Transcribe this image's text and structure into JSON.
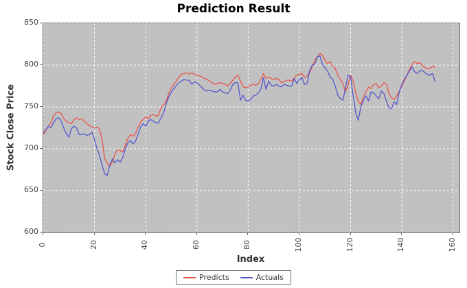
{
  "chart_data": {
    "type": "line",
    "title": "Prediction Result",
    "xlabel": "Index",
    "ylabel": "Stock Close Price",
    "xlim": [
      0,
      162.5
    ],
    "ylim": [
      600,
      850
    ],
    "x_ticks": [
      0,
      20,
      40,
      60,
      80,
      100,
      120,
      140,
      160
    ],
    "y_ticks": [
      600,
      650,
      700,
      750,
      800,
      850
    ],
    "x_start": 0,
    "x_step": 1,
    "grid": true,
    "grid_color": "#ffffff",
    "plot_bg": "#c1c1c1",
    "legend_position": "bottom-center",
    "series": [
      {
        "name": "Predicts",
        "color": "#e8544c",
        "values": [
          717,
          722,
          727,
          731,
          739,
          743,
          744,
          742,
          736,
          733,
          731,
          730,
          735,
          737,
          735,
          736,
          733,
          730,
          728,
          726,
          725,
          726,
          724,
          710,
          688,
          683,
          679,
          684,
          694,
          699,
          698,
          696,
          704,
          712,
          717,
          715,
          718,
          726,
          732,
          735,
          738,
          736,
          740,
          741,
          739,
          740,
          749,
          752,
          757,
          766,
          773,
          777,
          781,
          786,
          789,
          790,
          791,
          789,
          791,
          789,
          788,
          787,
          786,
          784,
          783,
          781,
          779,
          777,
          778,
          779,
          778,
          777,
          775,
          778,
          782,
          786,
          788,
          781,
          774,
          773,
          774,
          776,
          777,
          776,
          778,
          783,
          790,
          784,
          786,
          784,
          783,
          784,
          783,
          779,
          780,
          782,
          782,
          781,
          785,
          788,
          789,
          790,
          785,
          787,
          791,
          798,
          806,
          810,
          814,
          812,
          806,
          802,
          804,
          799,
          796,
          788,
          783,
          778,
          768,
          776,
          788,
          781,
          766,
          757,
          753,
          762,
          768,
          774,
          772,
          777,
          778,
          773,
          775,
          779,
          777,
          766,
          761,
          759,
          763,
          769,
          775,
          781,
          788,
          795,
          801,
          804,
          802,
          803,
          800,
          797,
          796,
          796,
          799,
          797
        ]
      },
      {
        "name": "Actuals",
        "color": "#5457cd",
        "values": [
          719,
          723,
          727,
          725,
          731,
          736,
          737,
          733,
          725,
          718,
          714,
          724,
          727,
          725,
          717,
          717,
          718,
          716,
          717,
          720,
          711,
          700,
          692,
          680,
          670,
          668,
          681,
          688,
          683,
          687,
          684,
          689,
          700,
          707,
          710,
          706,
          709,
          717,
          726,
          730,
          727,
          733,
          735,
          733,
          731,
          731,
          737,
          743,
          754,
          762,
          768,
          772,
          776,
          779,
          781,
          783,
          782,
          782,
          777,
          780,
          779,
          776,
          773,
          770,
          769,
          770,
          769,
          768,
          768,
          771,
          768,
          767,
          766,
          770,
          777,
          779,
          779,
          758,
          764,
          758,
          757,
          759,
          763,
          764,
          767,
          772,
          785,
          771,
          781,
          776,
          775,
          777,
          775,
          774,
          777,
          776,
          775,
          775,
          784,
          778,
          783,
          785,
          777,
          778,
          793,
          800,
          801,
          810,
          811,
          801,
          797,
          793,
          786,
          783,
          775,
          764,
          760,
          758,
          772,
          788,
          786,
          763,
          743,
          734,
          750,
          758,
          763,
          757,
          768,
          767,
          763,
          760,
          769,
          766,
          757,
          749,
          748,
          756,
          753,
          768,
          777,
          783,
          788,
          793,
          798,
          792,
          790,
          793,
          794,
          791,
          789,
          788,
          790,
          780
        ]
      }
    ]
  }
}
